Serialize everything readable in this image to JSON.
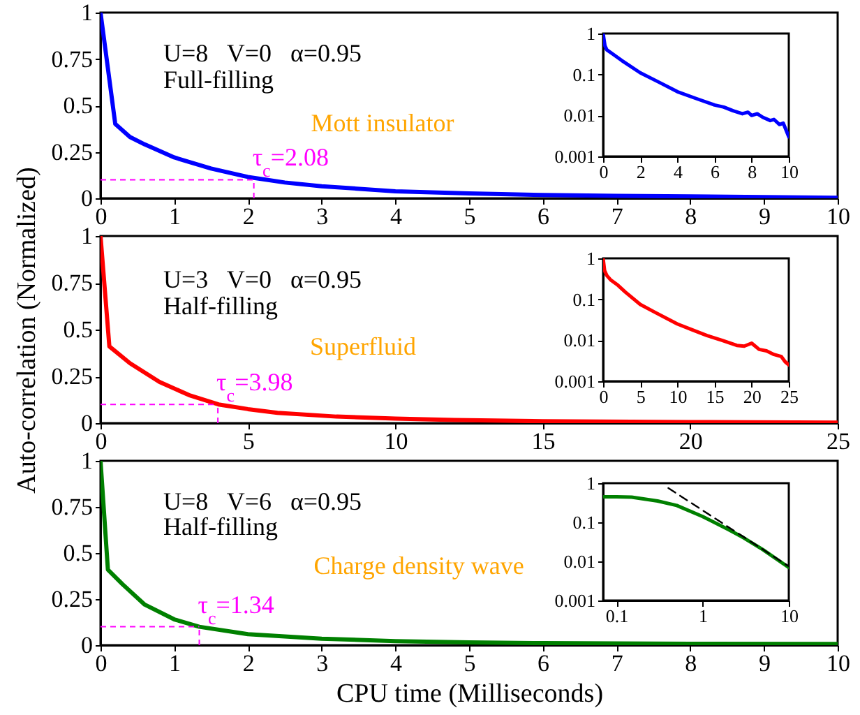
{
  "chart_data": [
    {
      "type": "line",
      "xlim": [
        0,
        10
      ],
      "xticks": [
        0,
        1,
        2,
        3,
        4,
        5,
        6,
        7,
        8,
        9,
        10
      ],
      "ylim": [
        0,
        1
      ],
      "yticks": [
        0,
        0.25,
        0.5,
        0.75,
        1
      ],
      "marker": "none",
      "x": [
        0,
        0.2,
        0.4,
        0.6,
        1,
        1.5,
        2,
        2.5,
        3,
        4,
        5,
        6,
        7,
        8,
        9,
        10
      ],
      "series": [
        {
          "color": "#0000ff",
          "values": [
            1,
            0.4,
            0.33,
            0.29,
            0.22,
            0.16,
            0.115,
            0.085,
            0.065,
            0.038,
            0.026,
            0.018,
            0.013,
            0.01,
            0.007,
            0.003
          ]
        }
      ],
      "annotations": [
        "U=8   V=0   α=0.95",
        "Full-filling",
        "Mott insulator",
        {
          "text": "τ$_{c}$=2.08",
          "x": 2.08,
          "y": 0.1
        }
      ]
    },
    {
      "type": "line",
      "log": "y",
      "xlim": [
        0,
        10
      ],
      "xticks": [
        0,
        2,
        4,
        6,
        8,
        10
      ],
      "ylim": [
        0.001,
        1
      ],
      "yticks": [
        0.001,
        0.01,
        0.1,
        1
      ],
      "marker": "none",
      "x": [
        0,
        0.1,
        0.2,
        0.5,
        1,
        2,
        3,
        4,
        5,
        6,
        6.5,
        7,
        7.5,
        7.8,
        8,
        8.3,
        8.6,
        9,
        9.2,
        9.5,
        9.7,
        10
      ],
      "series": [
        {
          "color": "#0000ff",
          "values": [
            1,
            0.5,
            0.4,
            0.32,
            0.22,
            0.11,
            0.065,
            0.038,
            0.026,
            0.018,
            0.016,
            0.013,
            0.011,
            0.012,
            0.01,
            0.011,
            0.009,
            0.0075,
            0.008,
            0.006,
            0.0065,
            0.003
          ]
        }
      ]
    },
    {
      "type": "line",
      "xlim": [
        0,
        25
      ],
      "xticks": [
        0,
        5,
        10,
        15,
        20,
        25
      ],
      "ylim": [
        0,
        1
      ],
      "yticks": [
        0,
        0.25,
        0.5,
        0.75,
        1
      ],
      "marker": "none",
      "ylabel": "Auto-correlation (Normalized)",
      "x": [
        0,
        0.3,
        1,
        2,
        3,
        4,
        5,
        6,
        8,
        10,
        12,
        15,
        20,
        25
      ],
      "series": [
        {
          "color": "#ff0000",
          "values": [
            1,
            0.41,
            0.32,
            0.22,
            0.15,
            0.1,
            0.075,
            0.055,
            0.035,
            0.024,
            0.017,
            0.01,
            0.006,
            0.003
          ]
        }
      ],
      "annotations": [
        "U=3   V=0   α=0.95",
        "Half-filling",
        "Superfluid",
        {
          "text": "τ$_{c}$=3.98",
          "x": 3.98,
          "y": 0.1
        }
      ]
    },
    {
      "type": "line",
      "log": "y",
      "xlim": [
        0,
        25
      ],
      "xticks": [
        0,
        5,
        10,
        15,
        20,
        25
      ],
      "ylim": [
        0.001,
        1
      ],
      "yticks": [
        0.001,
        0.01,
        0.1,
        1
      ],
      "marker": "none",
      "x": [
        0,
        0.2,
        0.5,
        1,
        2,
        3,
        5,
        7,
        10,
        12,
        14,
        16,
        18,
        19,
        20,
        21,
        22,
        23,
        24,
        24.5,
        25
      ],
      "series": [
        {
          "color": "#ff0000",
          "values": [
            1,
            0.5,
            0.38,
            0.3,
            0.22,
            0.15,
            0.075,
            0.048,
            0.025,
            0.018,
            0.013,
            0.01,
            0.0075,
            0.0072,
            0.0085,
            0.006,
            0.0055,
            0.0045,
            0.004,
            0.003,
            0.0025
          ]
        }
      ]
    },
    {
      "type": "line",
      "xlim": [
        0,
        10
      ],
      "xticks": [
        0,
        1,
        2,
        3,
        4,
        5,
        6,
        7,
        8,
        9,
        10
      ],
      "ylim": [
        0,
        1
      ],
      "yticks": [
        0,
        0.25,
        0.5,
        0.75,
        1
      ],
      "marker": "none",
      "xlabel": "CPU time (Milliseconds)",
      "x": [
        0,
        0.1,
        0.3,
        0.6,
        1,
        1.34,
        2,
        3,
        4,
        5,
        6,
        7,
        8,
        10
      ],
      "series": [
        {
          "color": "#008000",
          "values": [
            1,
            0.41,
            0.33,
            0.22,
            0.14,
            0.1,
            0.06,
            0.035,
            0.022,
            0.015,
            0.011,
            0.009,
            0.008,
            0.007
          ]
        }
      ],
      "annotations": [
        "U=8   V=6   α=0.95",
        "Half-filling",
        "Charge density wave",
        {
          "text": "τ$_{c}$=1.34",
          "x": 1.34,
          "y": 0.1
        }
      ]
    },
    {
      "type": "line",
      "log": "xy",
      "xlim": [
        0.07,
        10
      ],
      "xticks": [
        0.1,
        1,
        10
      ],
      "ylim": [
        0.001,
        1
      ],
      "yticks": [
        0.001,
        0.01,
        0.1,
        1
      ],
      "marker": "none",
      "series": [
        {
          "color": "#008000",
          "x": [
            0.07,
            0.1,
            0.15,
            0.3,
            0.5,
            1,
            2,
            3,
            5,
            10
          ],
          "values": [
            0.45,
            0.45,
            0.44,
            0.35,
            0.27,
            0.14,
            0.065,
            0.04,
            0.02,
            0.007
          ]
        },
        {
          "type": "line",
          "line_style": "dashed",
          "color": "#000000",
          "x": [
            0.4,
            10
          ],
          "values": [
            0.75,
            0.0075
          ]
        }
      ]
    }
  ]
}
